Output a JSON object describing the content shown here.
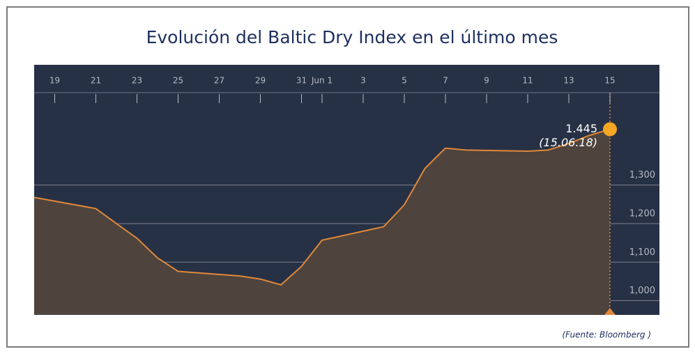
{
  "chart_data": {
    "type": "area",
    "title": "Evolución del Baltic Dry Index en el último mes",
    "x": [
      "2018-05-18",
      "2018-05-21",
      "2018-05-22",
      "2018-05-23",
      "2018-05-24",
      "2018-05-25",
      "2018-05-28",
      "2018-05-29",
      "2018-05-30",
      "2018-05-31",
      "2018-06-01",
      "2018-06-04",
      "2018-06-05",
      "2018-06-06",
      "2018-06-07",
      "2018-06-08",
      "2018-06-11",
      "2018-06-12",
      "2018-06-13",
      "2018-06-14",
      "2018-06-15"
    ],
    "series": [
      {
        "name": "Baltic Dry Index",
        "color": "#e0883a",
        "values": [
          1268,
          1239,
          1200,
          1162,
          1111,
          1076,
          1064,
          1056,
          1041,
          1089,
          1157,
          1192,
          1249,
          1343,
          1396,
          1391,
          1388,
          1391,
          1408,
          1429,
          1445
        ],
        "value_labels": [
          null,
          null,
          null,
          null,
          null,
          null,
          null,
          null,
          null,
          null,
          null,
          null,
          null,
          null,
          null,
          null,
          null,
          null,
          null,
          null,
          "1.445"
        ]
      }
    ],
    "annotation": "(15.06.18)",
    "source": "(Fuente: Bloomberg )",
    "xlim": [
      "2018-05-18",
      "2018-06-17"
    ],
    "xticks": [
      {
        "value": "2018-05-19",
        "label": "19"
      },
      {
        "value": "2018-05-21",
        "label": "21"
      },
      {
        "value": "2018-05-23",
        "label": "23"
      },
      {
        "value": "2018-05-25",
        "label": "25"
      },
      {
        "value": "2018-05-27",
        "label": "27"
      },
      {
        "value": "2018-05-29",
        "label": "29"
      },
      {
        "value": "2018-05-31",
        "label": "31"
      },
      {
        "value": "2018-06-01",
        "label": "Jun 1"
      },
      {
        "value": "2018-06-03",
        "label": "3"
      },
      {
        "value": "2018-06-05",
        "label": "5"
      },
      {
        "value": "2018-06-07",
        "label": "7"
      },
      {
        "value": "2018-06-09",
        "label": "9"
      },
      {
        "value": "2018-06-11",
        "label": "11"
      },
      {
        "value": "2018-06-13",
        "label": "13"
      },
      {
        "value": "2018-06-15",
        "label": "15"
      }
    ],
    "ylim": [
      963,
      1540
    ],
    "yticks": [
      {
        "value": 1000,
        "label": "1,000"
      },
      {
        "value": 1100,
        "label": "1,100"
      },
      {
        "value": 1200,
        "label": "1,200"
      },
      {
        "value": 1300,
        "label": "1,300"
      }
    ],
    "grid": true
  }
}
